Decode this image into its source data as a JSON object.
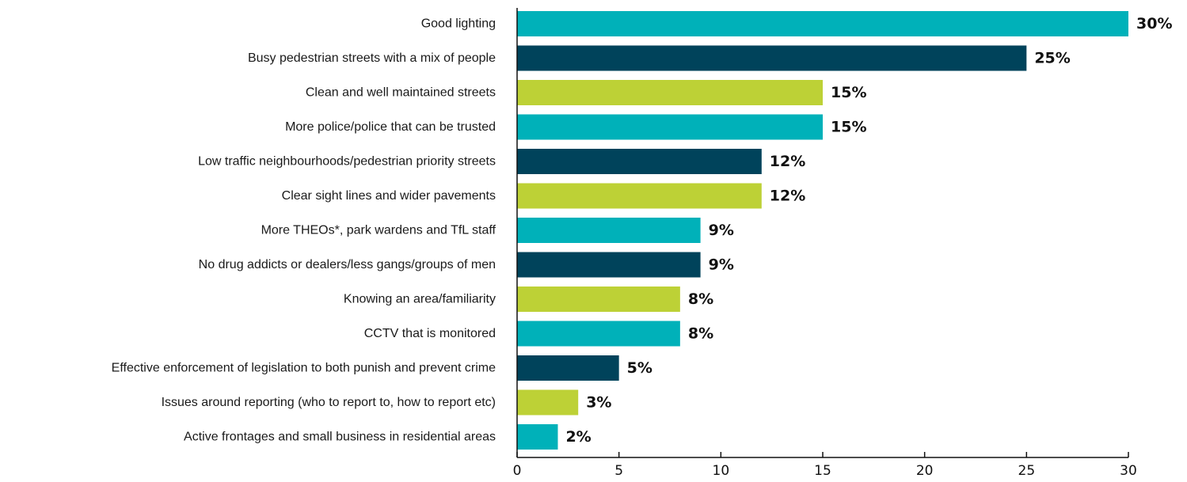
{
  "chart_data": {
    "type": "bar",
    "orientation": "horizontal",
    "categories": [
      "Good lighting",
      "Busy pedestrian streets with a mix of people",
      "Clean and well maintained streets",
      "More police/police that can be trusted",
      "Low traffic neighbourhoods/pedestrian priority streets",
      "Clear sight lines and wider pavements",
      "More THEOs*, park wardens and TfL staff",
      "No drug addicts or dealers/less gangs/groups of men",
      "Knowing an area/familiarity",
      "CCTV that is monitored",
      "Effective enforcement of legislation to both punish and prevent crime",
      "Issues around reporting (who to report to, how to report etc)",
      "Active frontages and small business in residential areas"
    ],
    "values": [
      30,
      25,
      15,
      15,
      12,
      12,
      9,
      9,
      8,
      8,
      5,
      3,
      2
    ],
    "value_labels": [
      "30%",
      "25%",
      "15%",
      "15%",
      "12%",
      "12%",
      "9%",
      "9%",
      "8%",
      "8%",
      "5%",
      "3%",
      "2%"
    ],
    "bar_colors": [
      "#00b1b9",
      "#00435b",
      "#bdd136",
      "#00b1b9",
      "#00435b",
      "#bdd136",
      "#00b1b9",
      "#00435b",
      "#bdd136",
      "#00b1b9",
      "#00435b",
      "#bdd136",
      "#00b1b9"
    ],
    "xticks": [
      0,
      5,
      10,
      15,
      20,
      25,
      30
    ],
    "xlim": [
      0,
      30
    ],
    "grid": false,
    "legend": "none"
  }
}
